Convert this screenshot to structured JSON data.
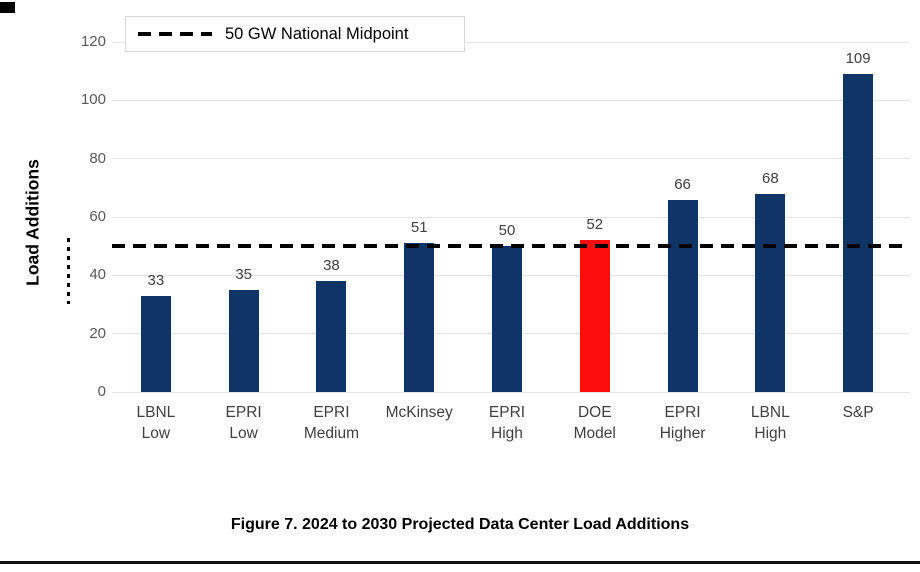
{
  "page": {
    "caption": "Figure 7. 2024 to 2030 Projected Data Center Load Additions"
  },
  "chart_data": {
    "type": "bar",
    "title": "",
    "ylabel": "Load Additions",
    "xlabel": "",
    "categories": [
      "LBNL\nLow",
      "EPRI\nLow",
      "EPRI\nMedium",
      "McKinsey",
      "EPRI\nHigh",
      "DOE\nModel",
      "EPRI\nHigher",
      "LBNL\nHigh",
      "S&P"
    ],
    "values": [
      33,
      35,
      38,
      51,
      50,
      52,
      66,
      68,
      109
    ],
    "value_labels": [
      33,
      35,
      38,
      51,
      50,
      52,
      66,
      68,
      109
    ],
    "highlight_index": 5,
    "yticks": [
      0,
      20,
      40,
      60,
      80,
      100,
      120
    ],
    "ylim": [
      0,
      120
    ],
    "grid": true,
    "legend_position": "top-left",
    "reference_line": {
      "value": 50,
      "label": "50 GW National Midpoint",
      "style": "dashed",
      "color": "#000000"
    },
    "colors": {
      "bar": "#0f3567",
      "highlight": "#fe0d0d",
      "gridline": "#e3e3e3",
      "tick_text": "#595959",
      "value_text": "#3f3f3f",
      "reference_line": "#000000"
    }
  }
}
